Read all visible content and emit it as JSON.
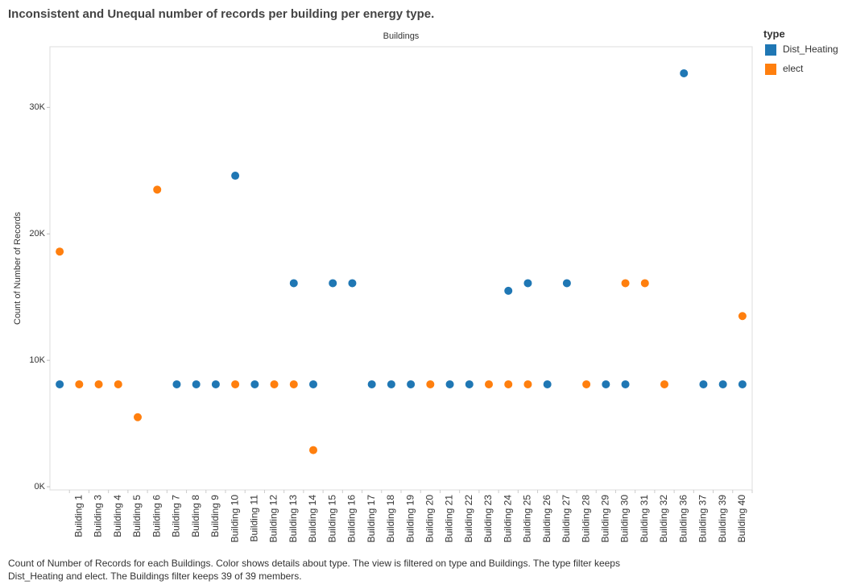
{
  "chart_data": {
    "type": "scatter",
    "title": "Inconsistent and Unequal number of records per building per energy type.",
    "column_header": "Buildings",
    "y_label": "Count of Number of Records",
    "legend_title": "type",
    "caption": [
      "Count of Number of Records for each Buildings.  Color shows details about type. The view is filtered on type and Buildings. The type filter keeps",
      "Dist_Heating and elect. The Buildings filter keeps 39 of 39 members."
    ],
    "categories": [
      null,
      "Building 1",
      "Building 3",
      "Building 4",
      "Building 5",
      "Building 6",
      "Building 7",
      "Building 8",
      "Building 9",
      "Building 10",
      "Building 11",
      "Building 12",
      "Building 13",
      "Building 14",
      "Building 15",
      "Building 16",
      "Building 17",
      "Building 18",
      "Building 19",
      "Building 20",
      "Building 21",
      "Building 22",
      "Building 23",
      "Building 24",
      "Building 25",
      "Building 26",
      "Building 27",
      "Building 28",
      "Building 29",
      "Building 30",
      "Building 31",
      "Building 32",
      "Building 36",
      "Building 37",
      "Building 39",
      "Building 40"
    ],
    "series": [
      {
        "name": "Dist_Heating",
        "color": "#1f77b4",
        "values": [
          8100,
          null,
          null,
          null,
          null,
          null,
          8100,
          8100,
          8100,
          24600,
          8100,
          null,
          16100,
          8100,
          16100,
          16100,
          8100,
          8100,
          8100,
          null,
          8100,
          8100,
          null,
          15500,
          16100,
          8100,
          16100,
          null,
          8100,
          8100,
          null,
          null,
          32700,
          8100,
          8100,
          8100
        ]
      },
      {
        "name": "elect",
        "color": "#ff7f0e",
        "values": [
          18600,
          8100,
          8100,
          8100,
          5500,
          23500,
          null,
          null,
          null,
          8100,
          null,
          8100,
          8100,
          2900,
          null,
          null,
          null,
          null,
          null,
          8100,
          null,
          null,
          8100,
          8100,
          8100,
          null,
          null,
          8100,
          null,
          16100,
          16100,
          8100,
          null,
          null,
          null,
          13500
        ]
      }
    ],
    "ylim": [
      -250,
      34800
    ],
    "yticks": [
      {
        "value": 0,
        "label": "0K"
      },
      {
        "value": 10000,
        "label": "10K"
      },
      {
        "value": 20000,
        "label": "20K"
      },
      {
        "value": 30000,
        "label": "30K"
      }
    ]
  }
}
